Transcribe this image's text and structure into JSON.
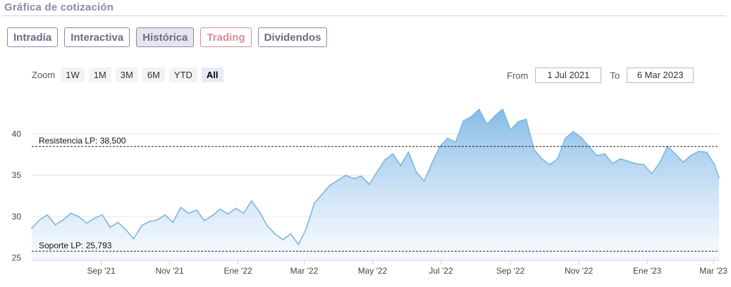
{
  "header": {
    "title": "Gráfica de cotización"
  },
  "tabs": [
    {
      "label": "Intradía",
      "name": "tab-intradia"
    },
    {
      "label": "Interactiva",
      "name": "tab-interactiva"
    },
    {
      "label": "Histórica",
      "name": "tab-historica"
    },
    {
      "label": "Trading",
      "name": "tab-trading"
    },
    {
      "label": "Dividendos",
      "name": "tab-dividendos"
    }
  ],
  "active_tab": "Histórica",
  "zoom": {
    "label": "Zoom",
    "buttons": [
      "1W",
      "1M",
      "3M",
      "6M",
      "YTD",
      "All"
    ],
    "active": "All"
  },
  "range": {
    "from_label": "From",
    "from_value": "1 Jul 2021",
    "to_label": "To",
    "to_value": "6 Mar 2023"
  },
  "colors": {
    "line": "#7eb6e0",
    "fill_top": "#7fb8e6",
    "fill_bottom": "#f2f7fd",
    "tab_trading": "#d98e99"
  },
  "chart_data": {
    "type": "area",
    "x": [
      "2021-07-01",
      "2021-07-08",
      "2021-07-15",
      "2021-07-22",
      "2021-07-29",
      "2021-08-05",
      "2021-08-12",
      "2021-08-19",
      "2021-08-26",
      "2021-09-02",
      "2021-09-09",
      "2021-09-16",
      "2021-09-23",
      "2021-09-30",
      "2021-10-07",
      "2021-10-14",
      "2021-10-21",
      "2021-10-28",
      "2021-11-04",
      "2021-11-11",
      "2021-11-18",
      "2021-11-25",
      "2021-12-02",
      "2021-12-09",
      "2021-12-16",
      "2021-12-23",
      "2021-12-30",
      "2022-01-06",
      "2022-01-13",
      "2022-01-20",
      "2022-01-27",
      "2022-02-03",
      "2022-02-10",
      "2022-02-17",
      "2022-02-24",
      "2022-03-03",
      "2022-03-10",
      "2022-03-17",
      "2022-03-24",
      "2022-03-31",
      "2022-04-07",
      "2022-04-14",
      "2022-04-21",
      "2022-04-28",
      "2022-05-05",
      "2022-05-12",
      "2022-05-19",
      "2022-05-26",
      "2022-06-02",
      "2022-06-09",
      "2022-06-16",
      "2022-06-23",
      "2022-06-30",
      "2022-07-07",
      "2022-07-14",
      "2022-07-21",
      "2022-07-28",
      "2022-08-04",
      "2022-08-11",
      "2022-08-18",
      "2022-08-25",
      "2022-09-01",
      "2022-09-08",
      "2022-09-15",
      "2022-09-22",
      "2022-09-29",
      "2022-10-06",
      "2022-10-13",
      "2022-10-20",
      "2022-10-27",
      "2022-11-03",
      "2022-11-10",
      "2022-11-17",
      "2022-11-24",
      "2022-12-01",
      "2022-12-08",
      "2022-12-15",
      "2022-12-22",
      "2022-12-29",
      "2023-01-05",
      "2023-01-12",
      "2023-01-19",
      "2023-01-26",
      "2023-02-02",
      "2023-02-09",
      "2023-02-16",
      "2023-02-23",
      "2023-03-02",
      "2023-03-06"
    ],
    "values": [
      28.6,
      29.6,
      30.2,
      29.0,
      29.6,
      30.4,
      30.0,
      29.2,
      29.8,
      30.2,
      28.7,
      29.3,
      28.4,
      27.3,
      28.9,
      29.4,
      29.6,
      30.2,
      29.3,
      31.1,
      30.4,
      30.8,
      29.5,
      30.1,
      30.9,
      30.3,
      31.0,
      30.4,
      31.9,
      30.6,
      28.9,
      27.9,
      27.2,
      27.9,
      26.6,
      28.6,
      31.6,
      32.7,
      33.8,
      34.4,
      35.0,
      34.6,
      34.9,
      33.9,
      35.4,
      36.9,
      37.6,
      36.2,
      37.8,
      35.4,
      34.3,
      36.5,
      38.5,
      39.5,
      39.0,
      41.6,
      42.1,
      43.0,
      41.2,
      42.2,
      43.0,
      40.5,
      41.5,
      41.8,
      38.1,
      37.0,
      36.3,
      37.0,
      39.5,
      40.3,
      39.6,
      38.5,
      37.4,
      37.6,
      36.4,
      37.0,
      36.7,
      36.4,
      36.3,
      35.2,
      36.5,
      38.5,
      37.6,
      36.6,
      37.4,
      37.9,
      37.8,
      36.3,
      34.7
    ],
    "xtick_labels": [
      {
        "label": "Sep '21",
        "date": "2021-09-01"
      },
      {
        "label": "Nov '21",
        "date": "2021-11-01"
      },
      {
        "label": "Ene '22",
        "date": "2022-01-01"
      },
      {
        "label": "Mar '22",
        "date": "2022-03-01"
      },
      {
        "label": "May '22",
        "date": "2022-05-01"
      },
      {
        "label": "Jul '22",
        "date": "2022-07-01"
      },
      {
        "label": "Sep '22",
        "date": "2022-09-01"
      },
      {
        "label": "Nov '22",
        "date": "2022-11-01"
      },
      {
        "label": "Ene '23",
        "date": "2023-01-01"
      },
      {
        "label": "Mar '23",
        "date": "2023-03-01"
      }
    ],
    "yticks": [
      25,
      30,
      35,
      40
    ],
    "ylim": [
      24.7,
      45.0
    ],
    "xlim": [
      "2021-07-01",
      "2023-03-06"
    ],
    "grid": "horizontal",
    "annotations": [
      {
        "text": "Resistencia LP: 38,500",
        "y": 38.5,
        "style": "dashed"
      },
      {
        "text": "Soporte LP: 25,793",
        "y": 25.793,
        "style": "dashed"
      }
    ]
  }
}
